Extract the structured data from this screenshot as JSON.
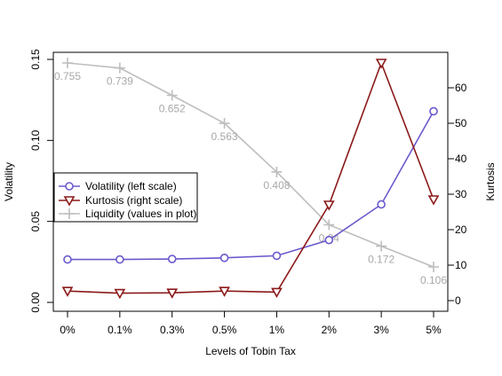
{
  "chart_data": {
    "type": "line",
    "categories": [
      "0%",
      "0.1%",
      "0.3%",
      "0.5%",
      "1%",
      "2%",
      "3%",
      "5%"
    ],
    "xlabel": "Levels of Tobin Tax",
    "ylabel_left": "Volatility",
    "ylabel_right": "Kurtosis",
    "ylim_left": [
      0,
      0.15
    ],
    "yticks_left": [
      "0.00",
      "0.05",
      "0.10",
      "0.15"
    ],
    "ylim_right": [
      0,
      67
    ],
    "yticks_right": [
      "0",
      "10",
      "20",
      "30",
      "40",
      "50",
      "60"
    ],
    "grid": false,
    "legend_position": "left-center",
    "series": [
      {
        "name": "Volatility (left scale)",
        "axis": "left",
        "color": "#6a5acd",
        "marker": "circle",
        "values": [
          0.0265,
          0.0265,
          0.0268,
          0.0275,
          0.0288,
          0.0385,
          0.0605,
          0.118
        ]
      },
      {
        "name": "Kurtosis (right scale)",
        "axis": "right",
        "color": "#8b1a1a",
        "marker": "triangle-down",
        "values": [
          2.7,
          2.1,
          2.2,
          2.7,
          2.4,
          27,
          67,
          28.5
        ]
      },
      {
        "name": "Liquidity (values in plot)",
        "axis": "none",
        "color": "#bebebe",
        "marker": "plus",
        "values": [
          0.755,
          0.739,
          0.652,
          0.563,
          0.408,
          0.24,
          0.172,
          0.106
        ],
        "labels": [
          "0.755",
          "0.739",
          "0.652",
          "0.563",
          "0.408",
          "0.24",
          "0.172",
          "0.106"
        ]
      }
    ]
  }
}
